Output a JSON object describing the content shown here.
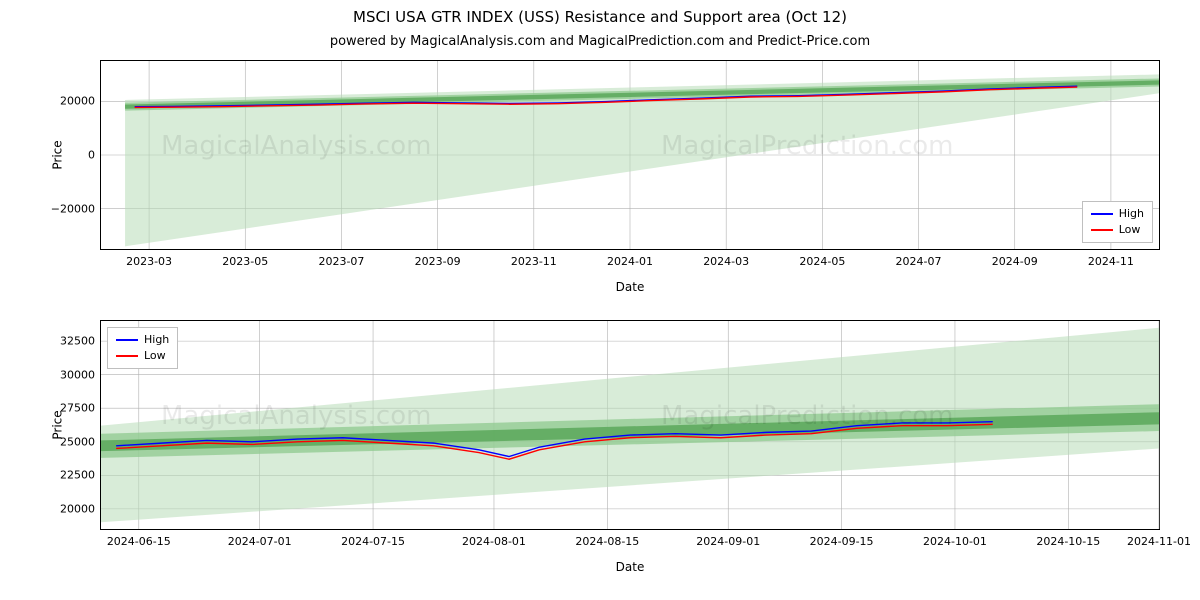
{
  "title_main": "MSCI USA GTR INDEX (USS) Resistance and Support area (Oct 12)",
  "title_sub": "powered by MagicalAnalysis.com and MagicalPrediction.com and Predict-Price.com",
  "colors": {
    "high": "#0000ff",
    "low": "#ff0000",
    "band_light": "#b8dcb8",
    "band_mid": "#8fc98f",
    "band_dark": "#5aa85a",
    "grid": "#b0b0b0",
    "border": "#000000",
    "watermark": "#000000"
  },
  "legend": {
    "items": [
      {
        "label": "High",
        "color_key": "high"
      },
      {
        "label": "Low",
        "color_key": "low"
      }
    ]
  },
  "watermarks": {
    "left": "MagicalAnalysis.com",
    "right": "MagicalPrediction.com"
  },
  "chart1": {
    "ylabel": "Price",
    "xlabel": "Date",
    "ylim": [
      -35000,
      35000
    ],
    "yticks": [
      -20000,
      0,
      20000
    ],
    "ytick_labels": [
      "−20000",
      "0",
      "20000"
    ],
    "xlim": [
      0,
      22
    ],
    "xticks": [
      1,
      3,
      5,
      7,
      9,
      11,
      13,
      15,
      17,
      19,
      21
    ],
    "xtick_labels": [
      "2023-03",
      "2023-05",
      "2023-07",
      "2023-09",
      "2023-11",
      "2024-01",
      "2024-03",
      "2024-05",
      "2024-07",
      "2024-09",
      "2024-11"
    ],
    "band_light": {
      "x": [
        0.5,
        22
      ],
      "y_top": [
        20500,
        30000
      ],
      "y_bot": [
        -34000,
        23000
      ]
    },
    "band_mid": {
      "x": [
        0.5,
        22
      ],
      "y_top": [
        19500,
        28500
      ],
      "y_bot": [
        16500,
        25500
      ]
    },
    "band_dark": {
      "x": [
        0.5,
        22
      ],
      "y_top": [
        18800,
        27800
      ],
      "y_bot": [
        17200,
        26200
      ]
    },
    "series_high": {
      "x": [
        0.7,
        1.5,
        2.5,
        3.5,
        4.5,
        5.5,
        6.5,
        7.5,
        8.5,
        9.5,
        10.5,
        11.5,
        12.5,
        13.5,
        14.5,
        15.5,
        16.5,
        17.5,
        18.5,
        19.5,
        20.3
      ],
      "y": [
        18000,
        18100,
        18300,
        18600,
        18900,
        19300,
        19600,
        19400,
        19200,
        19400,
        19900,
        20600,
        21200,
        21900,
        22100,
        22600,
        23200,
        23800,
        24600,
        25200,
        25600
      ]
    },
    "series_low": {
      "x": [
        0.7,
        1.5,
        2.5,
        3.5,
        4.5,
        5.5,
        6.5,
        7.5,
        8.5,
        9.5,
        10.5,
        11.5,
        12.5,
        13.5,
        14.5,
        15.5,
        16.5,
        17.5,
        18.5,
        19.5,
        20.3
      ],
      "y": [
        17700,
        17800,
        18000,
        18300,
        18600,
        19000,
        19300,
        19100,
        18900,
        19100,
        19600,
        20300,
        20900,
        21600,
        21800,
        22300,
        22900,
        23500,
        24300,
        24900,
        25300
      ]
    },
    "legend_pos": "bottom-right"
  },
  "chart2": {
    "ylabel": "Price",
    "xlabel": "Date",
    "ylim": [
      18500,
      34000
    ],
    "yticks": [
      20000,
      22500,
      25000,
      27500,
      30000,
      32500
    ],
    "ytick_labels": [
      "20000",
      "22500",
      "25000",
      "27500",
      "30000",
      "32500"
    ],
    "xlim": [
      0,
      140
    ],
    "xticks": [
      5,
      21,
      36,
      52,
      67,
      83,
      98,
      113,
      128,
      140
    ],
    "xtick_labels": [
      "2024-06-15",
      "2024-07-01",
      "2024-07-15",
      "2024-08-01",
      "2024-08-15",
      "2024-09-01",
      "2024-09-15",
      "2024-10-01",
      "2024-10-15",
      "2024-11-01"
    ],
    "band_light": {
      "x": [
        0,
        140
      ],
      "y_top": [
        26200,
        33500
      ],
      "y_bot": [
        19000,
        24500
      ]
    },
    "band_mid": {
      "x": [
        0,
        140
      ],
      "y_top": [
        25600,
        27800
      ],
      "y_bot": [
        23800,
        25800
      ]
    },
    "band_dark": {
      "x": [
        0,
        140
      ],
      "y_top": [
        25100,
        27200
      ],
      "y_bot": [
        24300,
        26300
      ]
    },
    "series_high": {
      "x": [
        2,
        8,
        14,
        20,
        26,
        32,
        38,
        44,
        50,
        54,
        58,
        64,
        70,
        76,
        82,
        88,
        94,
        100,
        106,
        112,
        118
      ],
      "y": [
        24700,
        24900,
        25100,
        25000,
        25200,
        25300,
        25100,
        24900,
        24400,
        23900,
        24600,
        25200,
        25500,
        25600,
        25500,
        25700,
        25800,
        26200,
        26400,
        26400,
        26500
      ]
    },
    "series_low": {
      "x": [
        2,
        8,
        14,
        20,
        26,
        32,
        38,
        44,
        50,
        54,
        58,
        64,
        70,
        76,
        82,
        88,
        94,
        100,
        106,
        112,
        118
      ],
      "y": [
        24500,
        24700,
        24900,
        24800,
        25000,
        25100,
        24900,
        24700,
        24200,
        23700,
        24400,
        25000,
        25300,
        25400,
        25300,
        25500,
        25600,
        26000,
        26200,
        26200,
        26300
      ]
    },
    "legend_pos": "top-left"
  }
}
